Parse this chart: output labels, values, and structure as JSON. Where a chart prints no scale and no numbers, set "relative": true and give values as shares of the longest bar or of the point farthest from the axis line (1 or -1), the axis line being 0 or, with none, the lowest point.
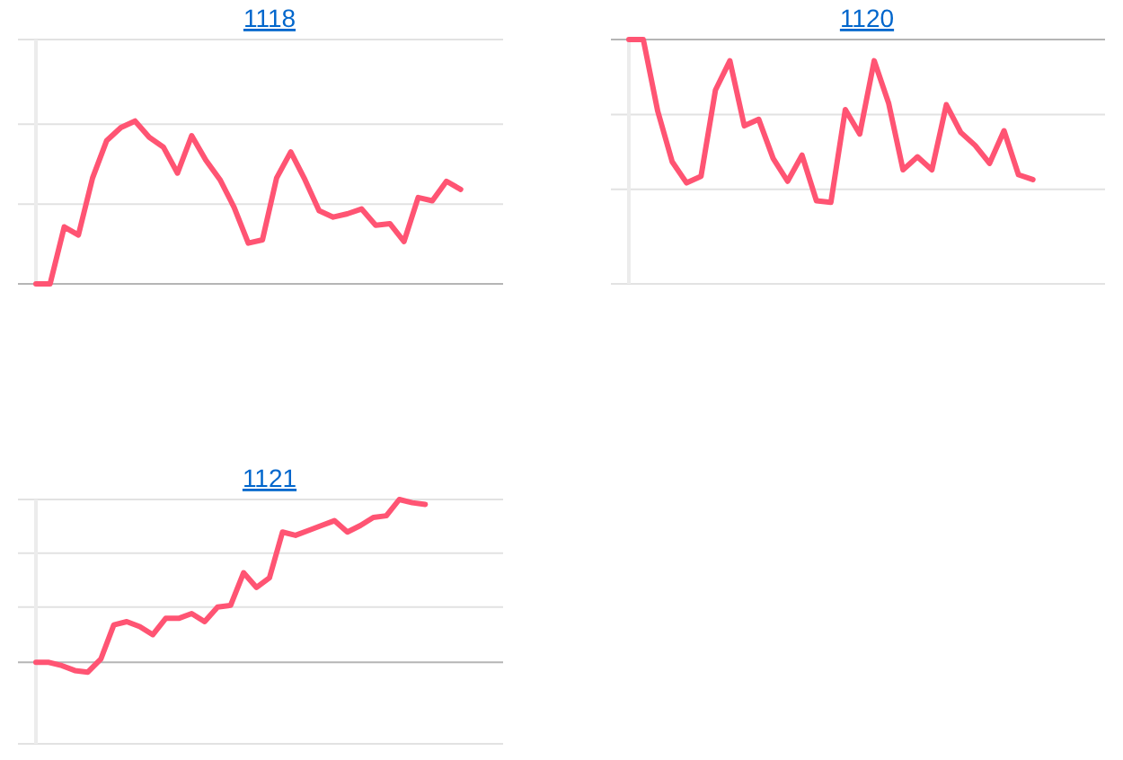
{
  "chart_data": [
    {
      "type": "line",
      "title": "1118",
      "relative": true,
      "ref_lines": [
        {
          "axis": "y",
          "value": 0.49,
          "color": "#e2e2e2"
        },
        {
          "axis": "y",
          "value": 0.98,
          "color": "#e2e2e2"
        }
      ],
      "categories": [
        null,
        null,
        null,
        null,
        null,
        null,
        null,
        null,
        null,
        null,
        null,
        null,
        null,
        null,
        null,
        null,
        null,
        null,
        null,
        null,
        null,
        null,
        null,
        null,
        null,
        null,
        null,
        null,
        null,
        null,
        null,
        null,
        null,
        null
      ],
      "series": [
        {
          "color": "#ff5473",
          "values": [
            0,
            0,
            0.35,
            0.3,
            0.65,
            0.88,
            0.96,
            1,
            0.9,
            0.84,
            0.68,
            0.91,
            0.76,
            0.64,
            0.47,
            0.25,
            0.27,
            0.65,
            0.81,
            0.64,
            0.45,
            0.41,
            0.43,
            0.46,
            0.36,
            0.37,
            0.26,
            0.53,
            0.51,
            0.63,
            0.58,
            null,
            null,
            null
          ]
        }
      ]
    },
    {
      "type": "line",
      "title": "1120",
      "relative": true,
      "ref_lines": [
        {
          "axis": "y",
          "value": -0.46,
          "color": "#e2e2e2"
        },
        {
          "axis": "y",
          "value": -0.92,
          "color": "#e2e2e2"
        }
      ],
      "categories": [
        null,
        null,
        null,
        null,
        null,
        null,
        null,
        null,
        null,
        null,
        null,
        null,
        null,
        null,
        null,
        null,
        null,
        null,
        null,
        null,
        null,
        null,
        null,
        null,
        null,
        null,
        null,
        null,
        null,
        null,
        null,
        null,
        null,
        null
      ],
      "series": [
        {
          "color": "#ff5473",
          "values": [
            0,
            0,
            -0.44,
            -0.75,
            -0.88,
            -0.84,
            -0.31,
            -0.13,
            -0.53,
            -0.49,
            -0.73,
            -0.87,
            -0.71,
            -0.99,
            -1,
            -0.43,
            -0.58,
            -0.13,
            -0.39,
            -0.8,
            -0.72,
            -0.8,
            -0.4,
            -0.57,
            -0.65,
            -0.76,
            -0.56,
            -0.83,
            -0.86,
            null,
            null,
            null,
            null,
            null
          ]
        }
      ]
    },
    {
      "type": "line",
      "title": "1121",
      "relative": true,
      "ref_lines": [
        {
          "axis": "y",
          "value": 0.34,
          "color": "#e2e2e2"
        },
        {
          "axis": "y",
          "value": 0.67,
          "color": "#e2e2e2"
        }
      ],
      "categories": [
        null,
        null,
        null,
        null,
        null,
        null,
        null,
        null,
        null,
        null,
        null,
        null,
        null,
        null,
        null,
        null,
        null,
        null,
        null,
        null,
        null,
        null,
        null,
        null,
        null,
        null,
        null,
        null,
        null,
        null,
        null,
        null,
        null,
        null,
        null,
        null,
        null
      ],
      "series": [
        {
          "color": "#ff5473",
          "values": [
            0,
            0,
            -0.02,
            -0.05,
            -0.06,
            0.02,
            0.23,
            0.25,
            0.22,
            0.17,
            0.27,
            0.27,
            0.3,
            0.25,
            0.34,
            0.35,
            0.55,
            0.46,
            0.52,
            0.8,
            0.78,
            0.81,
            0.84,
            0.87,
            0.8,
            0.84,
            0.89,
            0.9,
            1,
            0.98,
            0.97,
            null,
            null,
            null,
            null,
            null,
            null
          ]
        }
      ]
    }
  ]
}
